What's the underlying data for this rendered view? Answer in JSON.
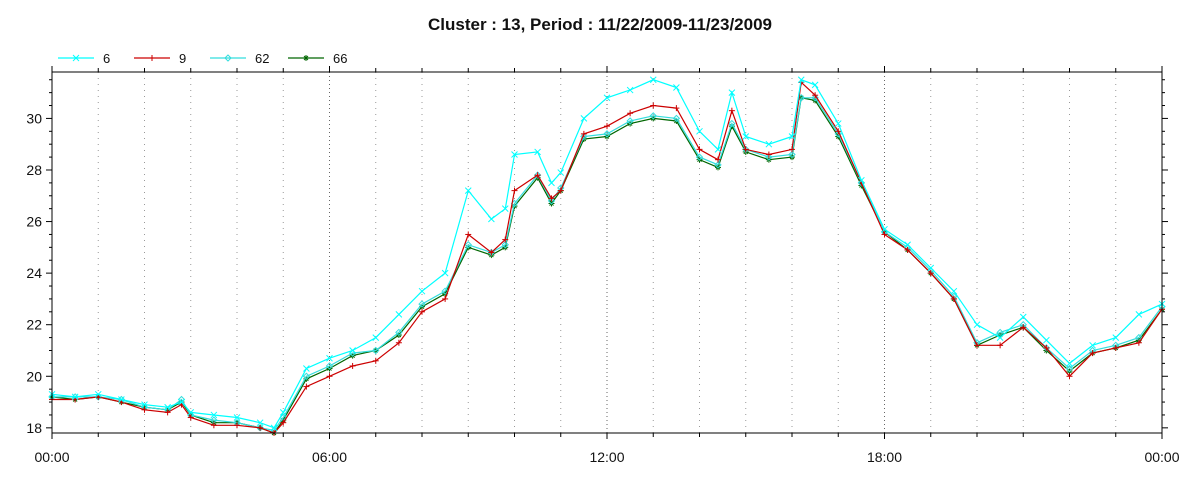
{
  "chart_data": {
    "type": "line",
    "title": "Cluster : 13, Period : 11/22/2009-11/23/2009",
    "xlabel": "",
    "ylabel": "",
    "x_unit": "hour",
    "xlim": [
      0,
      24
    ],
    "ylim": [
      17.8,
      31.8
    ],
    "grid": true,
    "legend_position": "top-left",
    "x_ticks": [
      0,
      6,
      12,
      18,
      24
    ],
    "x_tick_labels": [
      "00:00",
      "06:00",
      "12:00",
      "18:00",
      "00:00"
    ],
    "y_ticks": [
      18,
      20,
      22,
      24,
      26,
      28,
      30
    ],
    "y_tick_labels": [
      "18",
      "20",
      "22",
      "24",
      "26",
      "28",
      "30"
    ],
    "x": [
      0,
      0.5,
      1,
      1.5,
      2,
      2.5,
      2.8,
      3,
      3.5,
      4,
      4.5,
      4.8,
      5,
      5.5,
      6,
      6.5,
      7,
      7.5,
      8,
      8.5,
      9,
      9.5,
      9.8,
      10,
      10.5,
      10.8,
      11,
      11.5,
      12,
      12.5,
      13,
      13.5,
      14,
      14.4,
      14.7,
      15,
      15.5,
      16,
      16.2,
      16.5,
      17,
      17.5,
      18,
      18.5,
      19,
      19.5,
      20,
      20.5,
      21,
      21.5,
      22,
      22.5,
      23,
      23.5,
      24
    ],
    "series": [
      {
        "name": "6",
        "color": "#00ffff",
        "marker": "x",
        "values": [
          19.3,
          19.2,
          19.3,
          19.1,
          18.9,
          18.8,
          19.0,
          18.6,
          18.5,
          18.4,
          18.2,
          18.0,
          18.6,
          20.3,
          20.7,
          21.0,
          21.5,
          22.4,
          23.3,
          24.0,
          27.2,
          26.1,
          26.5,
          28.6,
          28.7,
          27.5,
          27.9,
          30.0,
          30.8,
          31.1,
          31.5,
          31.2,
          29.5,
          28.8,
          31.0,
          29.3,
          29.0,
          29.3,
          31.5,
          31.3,
          29.8,
          27.6,
          25.7,
          25.1,
          24.2,
          23.3,
          22.0,
          21.5,
          22.3,
          21.4,
          20.5,
          21.2,
          21.5,
          22.4,
          22.8
        ]
      },
      {
        "name": "9",
        "color": "#cc0000",
        "marker": "+",
        "values": [
          19.1,
          19.1,
          19.2,
          19.0,
          18.7,
          18.6,
          18.9,
          18.4,
          18.1,
          18.1,
          18.0,
          17.8,
          18.2,
          19.6,
          20.0,
          20.4,
          20.6,
          21.3,
          22.5,
          23.0,
          25.5,
          24.8,
          25.3,
          27.2,
          27.8,
          26.9,
          27.2,
          29.4,
          29.7,
          30.2,
          30.5,
          30.4,
          28.8,
          28.4,
          30.3,
          28.8,
          28.6,
          28.8,
          31.4,
          30.9,
          29.5,
          27.5,
          25.5,
          24.9,
          24.0,
          23.0,
          21.2,
          21.2,
          21.9,
          21.1,
          20.0,
          20.9,
          21.1,
          21.3,
          22.6
        ]
      },
      {
        "name": "62",
        "color": "#33dddd",
        "marker": "diamond",
        "values": [
          19.2,
          19.2,
          19.2,
          19.1,
          18.8,
          18.7,
          19.1,
          18.5,
          18.3,
          18.2,
          18.0,
          17.9,
          18.4,
          20.0,
          20.4,
          20.9,
          21.0,
          21.7,
          22.8,
          23.3,
          25.1,
          24.8,
          25.1,
          26.7,
          27.8,
          26.8,
          27.3,
          29.3,
          29.4,
          29.9,
          30.1,
          30.0,
          28.5,
          28.2,
          29.8,
          28.8,
          28.5,
          28.6,
          30.8,
          30.8,
          29.4,
          27.5,
          25.6,
          25.0,
          24.1,
          23.1,
          21.3,
          21.7,
          22.0,
          21.1,
          20.3,
          21.0,
          21.2,
          21.5,
          22.7
        ]
      },
      {
        "name": "66",
        "color": "#006600",
        "marker": "asterisk",
        "values": [
          19.2,
          19.1,
          19.2,
          19.0,
          18.8,
          18.7,
          19.0,
          18.5,
          18.2,
          18.2,
          18.0,
          17.8,
          18.3,
          19.9,
          20.3,
          20.8,
          21.0,
          21.6,
          22.7,
          23.2,
          25.0,
          24.7,
          25.0,
          26.6,
          27.7,
          26.7,
          27.2,
          29.2,
          29.3,
          29.8,
          30.0,
          29.9,
          28.4,
          28.1,
          29.7,
          28.7,
          28.4,
          28.5,
          30.8,
          30.7,
          29.3,
          27.4,
          25.6,
          24.9,
          24.0,
          23.0,
          21.2,
          21.6,
          21.9,
          21.0,
          20.2,
          20.9,
          21.1,
          21.4,
          22.6
        ]
      }
    ]
  }
}
